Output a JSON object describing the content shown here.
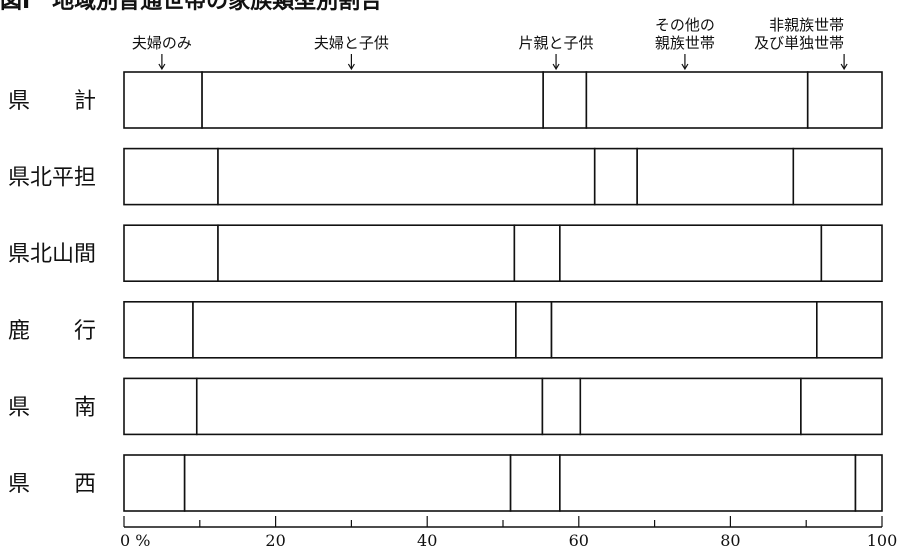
{
  "chart_data": {
    "type": "bar",
    "stacked": true,
    "orientation": "horizontal",
    "title": "図Ⅰ　地域別普通世帯の家族類型別割合",
    "xlabel": "",
    "ylabel": "",
    "xlim": [
      0,
      100
    ],
    "x_unit": "%",
    "legend_position": "top",
    "categories": [
      "県　　計",
      "県北平担",
      "県北山間",
      "鹿　　行",
      "県　　南",
      "県　　西"
    ],
    "series": [
      {
        "name": "夫婦のみ",
        "values": [
          10.3,
          12.4,
          12.4,
          9.1,
          9.6,
          8.0
        ]
      },
      {
        "name": "夫婦と子供",
        "values": [
          45.0,
          49.7,
          39.1,
          42.6,
          45.6,
          43.0
        ]
      },
      {
        "name": "片親と子供",
        "values": [
          5.7,
          5.6,
          6.0,
          4.7,
          5.0,
          6.5
        ]
      },
      {
        "name": "その他の\n親族世帯",
        "values": [
          29.2,
          20.6,
          34.5,
          35.0,
          29.1,
          39.0
        ]
      },
      {
        "name": "非親族世帯\n及び単独世帯",
        "values": [
          9.8,
          11.7,
          8.0,
          8.6,
          10.7,
          3.5
        ]
      }
    ],
    "x_ticks": [
      0,
      20,
      40,
      60,
      80,
      100
    ],
    "x_tick_labels": [
      "0 %",
      "20",
      "40",
      "60",
      "80",
      "100"
    ],
    "legend_arrow_at": [
      5,
      30,
      57,
      74,
      95
    ]
  }
}
